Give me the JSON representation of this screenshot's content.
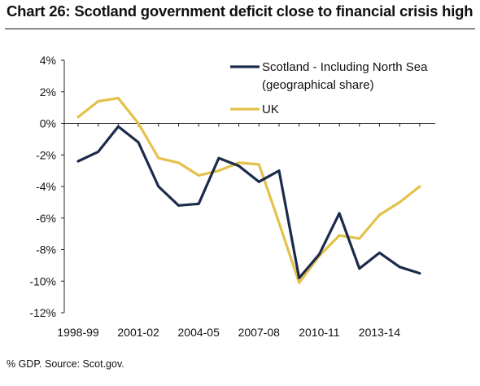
{
  "title": "Chart 26: Scotland government deficit close to financial crisis high",
  "source": "% GDP. Source: Scot.gov.",
  "chart_data": {
    "type": "line",
    "x_tick_labels": [
      "1998-99",
      "2001-02",
      "2004-05",
      "2007-08",
      "2010-11",
      "2013-14"
    ],
    "x": [
      "1998-99",
      "1999-00",
      "2000-01",
      "2001-02",
      "2002-03",
      "2003-04",
      "2004-05",
      "2005-06",
      "2006-07",
      "2007-08",
      "2008-09",
      "2009-10",
      "2010-11",
      "2011-12",
      "2012-13",
      "2013-14",
      "2014-15",
      "2015-16"
    ],
    "y_ticks": [
      4,
      2,
      0,
      -2,
      -4,
      -6,
      -8,
      -10,
      -12
    ],
    "y_tick_labels": [
      "4%",
      "2%",
      "0%",
      "-2%",
      "-4%",
      "-6%",
      "-8%",
      "-10%",
      "-12%"
    ],
    "ylim": [
      -12,
      4
    ],
    "series": [
      {
        "name": "Scotland - Including North Sea (geographical share)",
        "label_lines": [
          "Scotland - Including North Sea",
          "(geographical share)"
        ],
        "color": "#1c2b4b",
        "values": [
          -2.4,
          -1.8,
          -0.2,
          -1.2,
          -4.0,
          -5.2,
          -5.1,
          -2.2,
          -2.7,
          -3.7,
          -3.0,
          -9.8,
          -8.3,
          -5.7,
          -9.2,
          -8.2,
          -9.1,
          -9.5
        ]
      },
      {
        "name": "UK",
        "label_lines": [
          "UK"
        ],
        "color": "#e3c14a",
        "values": [
          0.4,
          1.4,
          1.6,
          0.0,
          -2.2,
          -2.5,
          -3.3,
          -3.0,
          -2.5,
          -2.6,
          -6.3,
          -10.1,
          -8.4,
          -7.1,
          -7.3,
          -5.8,
          -5.0,
          -4.0
        ]
      }
    ],
    "grid": false,
    "legend_position": "top-right"
  }
}
